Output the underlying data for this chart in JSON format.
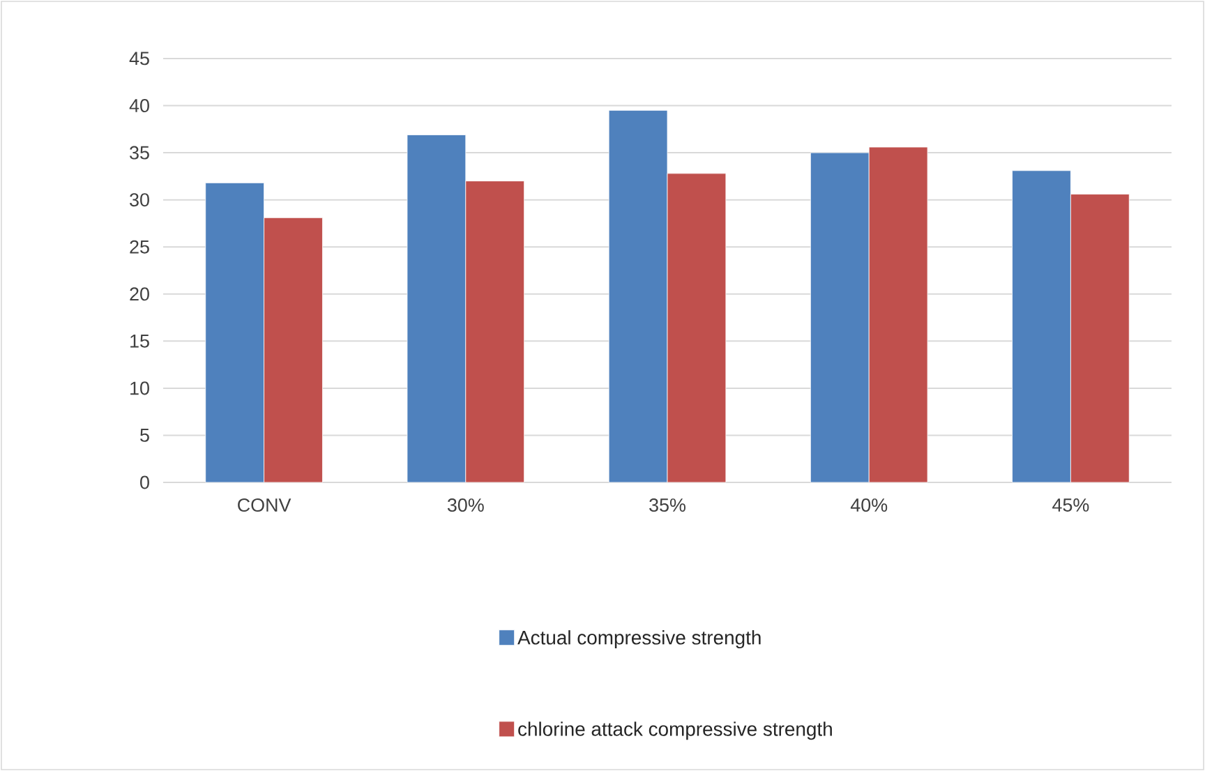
{
  "chart_data": {
    "type": "bar",
    "categories": [
      "CONV",
      "30%",
      "35%",
      "40%",
      "45%"
    ],
    "series": [
      {
        "name": "Actual compressive strength",
        "color": "#4f81bd",
        "values": [
          31.8,
          36.9,
          39.5,
          35.0,
          33.1
        ]
      },
      {
        "name": "chlorine attack compressive strength",
        "color": "#c0504d",
        "values": [
          28.1,
          32.0,
          32.8,
          35.6,
          30.6
        ]
      }
    ],
    "ylim": [
      0,
      45
    ],
    "yticks": [
      0,
      5,
      10,
      15,
      20,
      25,
      30,
      35,
      40,
      45
    ],
    "grid": "y",
    "legend": "bottom"
  }
}
